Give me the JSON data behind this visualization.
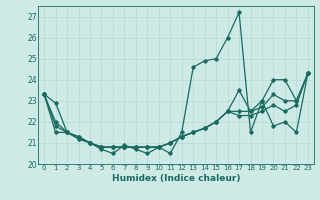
{
  "xlabel": "Humidex (Indice chaleur)",
  "bg_color": "#ceeae6",
  "line_color": "#1a6b5e",
  "grid_color": "#b8d8d4",
  "xlim": [
    -0.5,
    23.5
  ],
  "ylim": [
    20.0,
    27.5
  ],
  "yticks": [
    20,
    21,
    22,
    23,
    24,
    25,
    26,
    27
  ],
  "xticks": [
    0,
    1,
    2,
    3,
    4,
    5,
    6,
    7,
    8,
    9,
    10,
    11,
    12,
    13,
    14,
    15,
    16,
    17,
    18,
    19,
    20,
    21,
    22,
    23
  ],
  "series_zigzag": [
    23.3,
    22.9,
    21.5,
    21.2,
    21.0,
    20.7,
    20.5,
    20.9,
    20.7,
    20.5,
    20.8,
    20.5,
    21.5,
    24.6,
    24.9,
    25.0,
    26.0,
    27.2,
    21.5,
    23.0,
    21.8,
    22.0,
    21.5,
    24.3
  ],
  "series_diag1": [
    23.3,
    22.0,
    21.5,
    21.2,
    21.0,
    20.8,
    20.8,
    20.8,
    20.8,
    20.8,
    20.8,
    21.0,
    21.3,
    21.5,
    21.7,
    22.0,
    22.5,
    23.5,
    22.5,
    23.0,
    24.0,
    24.0,
    23.0,
    24.3
  ],
  "series_diag2": [
    23.3,
    21.8,
    21.5,
    21.3,
    21.0,
    20.8,
    20.8,
    20.8,
    20.8,
    20.8,
    20.8,
    21.0,
    21.3,
    21.5,
    21.7,
    22.0,
    22.5,
    22.5,
    22.5,
    22.7,
    23.3,
    23.0,
    23.0,
    24.3
  ],
  "series_diag3": [
    23.3,
    21.5,
    21.5,
    21.3,
    21.0,
    20.8,
    20.8,
    20.8,
    20.8,
    20.8,
    20.8,
    21.0,
    21.3,
    21.5,
    21.7,
    22.0,
    22.5,
    22.3,
    22.3,
    22.5,
    22.8,
    22.5,
    22.8,
    24.3
  ]
}
